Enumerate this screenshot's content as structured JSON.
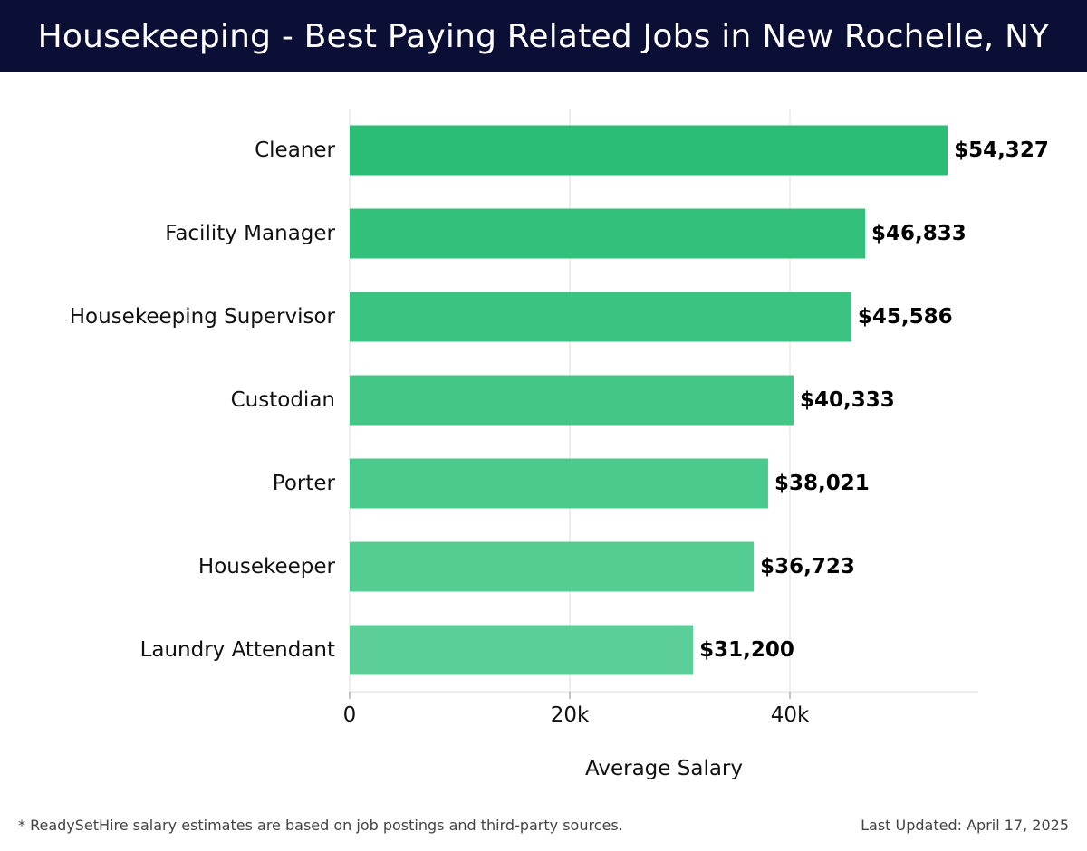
{
  "header": {
    "title": "Housekeeping - Best Paying Related Jobs in New Rochelle, NY"
  },
  "chart_data": {
    "type": "bar",
    "orientation": "horizontal",
    "categories": [
      "Cleaner",
      "Facility Manager",
      "Housekeeping Supervisor",
      "Custodian",
      "Porter",
      "Housekeeper",
      "Laundry Attendant"
    ],
    "values": [
      54327,
      46833,
      45586,
      40333,
      38021,
      36723,
      31200
    ],
    "value_labels": [
      "$54,327",
      "$46,833",
      "$45,586",
      "$40,333",
      "$38,021",
      "$36,723",
      "$31,200"
    ],
    "xlabel": "Average Salary",
    "ylabel": "",
    "xlim": [
      0,
      57200
    ],
    "xticks": [
      0,
      20000,
      40000
    ],
    "xtick_labels": [
      "0",
      "20k",
      "40k"
    ],
    "grid": true,
    "colors": {
      "bar_top": "#2bbd75",
      "bar_bottom": "#5ccf98"
    }
  },
  "footer": {
    "note": "* ReadySetHire salary estimates are based on job postings and third-party sources.",
    "updated": "Last Updated: April 17, 2025"
  }
}
